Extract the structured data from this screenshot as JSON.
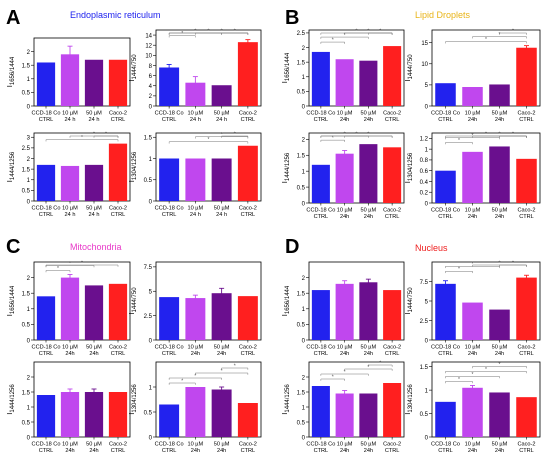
{
  "figure": {
    "panels": [
      {
        "letter": "A",
        "title": "Endoplasmic reticulum",
        "title_color": "#1e22ee"
      },
      {
        "letter": "B",
        "title": "Lipid Droplets",
        "title_color": "#e8b417"
      },
      {
        "letter": "C",
        "title": "Mitochondria",
        "title_color": "#e838c8"
      },
      {
        "letter": "D",
        "title": "Nucleus",
        "title_color": "#ee1e1e"
      }
    ],
    "bar_colors": [
      "#2222ee",
      "#c047ee",
      "#6a0f8e",
      "#ff1f1f"
    ],
    "significance_marker": "*"
  },
  "chart_data": [
    {
      "panel": "A",
      "type": "bar",
      "ylabel_main": "I",
      "ylabel_sub": "1656/1444",
      "ylim": [
        0,
        2.5
      ],
      "yticks": [
        0,
        0.5,
        1.0,
        1.5,
        2.0
      ],
      "categories": [
        [
          "CCD-18 Co",
          "CTRL"
        ],
        [
          "10 µM",
          "24 h"
        ],
        [
          "50 µM",
          "24 h"
        ],
        [
          "Caco-2",
          "CTRL"
        ]
      ],
      "values": [
        1.6,
        1.9,
        1.7,
        1.7
      ],
      "errors": [
        0,
        0.3,
        0,
        0
      ],
      "significance": []
    },
    {
      "panel": "A",
      "type": "bar",
      "ylabel_main": "I",
      "ylabel_sub": "1444/750",
      "ylim": [
        0,
        15
      ],
      "yticks": [
        0,
        2,
        4,
        6,
        8,
        10,
        12,
        14
      ],
      "categories": [
        [
          "CCD-18 Co",
          "CTRL"
        ],
        [
          "10 µM",
          "24 h"
        ],
        [
          "50 µM",
          "24 h"
        ],
        [
          "Caco-2",
          "CTRL"
        ]
      ],
      "values": [
        7.6,
        4.6,
        4.1,
        12.6
      ],
      "errors": [
        0.6,
        1.2,
        0,
        0.5
      ],
      "significance": [
        [
          0,
          1
        ],
        [
          0,
          2
        ],
        [
          0,
          3
        ],
        [
          1,
          3
        ],
        [
          2,
          3
        ]
      ]
    },
    {
      "panel": "A",
      "type": "bar",
      "ylabel_main": "I",
      "ylabel_sub": "1444/1256",
      "ylim": [
        0,
        3.2
      ],
      "yticks": [
        0,
        0.5,
        1.0,
        1.5,
        2.0,
        2.5,
        3.0
      ],
      "categories": [
        [
          "CCD-18 Co",
          "CTRL"
        ],
        [
          "10 µM",
          "24 h"
        ],
        [
          "50 µM",
          "24 h"
        ],
        [
          "Caco-2",
          "CTRL"
        ]
      ],
      "values": [
        1.7,
        1.65,
        1.7,
        2.7
      ],
      "errors": [
        0,
        0,
        0,
        0
      ],
      "significance": [
        [
          0,
          3
        ],
        [
          1,
          3
        ],
        [
          2,
          3
        ]
      ]
    },
    {
      "panel": "A",
      "type": "bar",
      "ylabel_main": "I",
      "ylabel_sub": "1304/1256",
      "ylim": [
        0,
        1.6
      ],
      "yticks": [
        0,
        0.5,
        1.0,
        1.5
      ],
      "categories": [
        [
          "CCD-18 Co",
          "CTRL"
        ],
        [
          "10 µM",
          "24 h"
        ],
        [
          "50 µM",
          "24 h"
        ],
        [
          "Caco-2",
          "CTRL"
        ]
      ],
      "values": [
        1.0,
        1.0,
        1.0,
        1.3
      ],
      "errors": [
        0,
        0,
        0,
        0
      ],
      "significance": [
        [
          0,
          3
        ],
        [
          1,
          3
        ],
        [
          2,
          3
        ]
      ]
    },
    {
      "panel": "B",
      "type": "bar",
      "ylabel_main": "I",
      "ylabel_sub": "1656/1444",
      "ylim": [
        0,
        2.6
      ],
      "yticks": [
        0,
        0.5,
        1.0,
        1.5,
        2.0,
        2.5
      ],
      "categories": [
        [
          "CCD-18 Co",
          "CTRL"
        ],
        [
          "10 µM",
          "24h"
        ],
        [
          "50 µM",
          "24h"
        ],
        [
          "Caco-2",
          "CTRL"
        ]
      ],
      "values": [
        1.85,
        1.6,
        1.55,
        2.05
      ],
      "errors": [
        0,
        0,
        0,
        0
      ],
      "significance": [
        [
          0,
          1
        ],
        [
          0,
          2
        ],
        [
          0,
          3
        ],
        [
          1,
          3
        ],
        [
          2,
          3
        ]
      ]
    },
    {
      "panel": "B",
      "type": "bar",
      "ylabel_main": "I",
      "ylabel_sub": "1444/750",
      "ylim": [
        0,
        18
      ],
      "yticks": [
        0,
        5,
        10,
        15
      ],
      "categories": [
        [
          "CCD-18 Co",
          "CTRL"
        ],
        [
          "10 µM",
          "24h"
        ],
        [
          "50 µM",
          "24h"
        ],
        [
          "Caco-2",
          "CTRL"
        ]
      ],
      "values": [
        5.4,
        4.5,
        5.1,
        13.8
      ],
      "errors": [
        0,
        0,
        0,
        0.5
      ],
      "significance": [
        [
          0,
          3
        ],
        [
          1,
          3
        ],
        [
          2,
          3
        ]
      ]
    },
    {
      "panel": "B",
      "type": "bar",
      "ylabel_main": "I",
      "ylabel_sub": "1444/1256",
      "ylim": [
        0,
        2.2
      ],
      "yticks": [
        0,
        0.5,
        1.0,
        1.5,
        2.0
      ],
      "categories": [
        [
          "CCD-18 Co",
          "CTRL"
        ],
        [
          "10 µM",
          "24h"
        ],
        [
          "50 µM",
          "24h"
        ],
        [
          "Caco-2",
          "CTRL"
        ]
      ],
      "values": [
        1.2,
        1.55,
        1.85,
        1.75
      ],
      "errors": [
        0,
        0.1,
        0,
        0
      ],
      "significance": [
        [
          0,
          1
        ],
        [
          0,
          2
        ],
        [
          0,
          3
        ],
        [
          1,
          3
        ]
      ]
    },
    {
      "panel": "B",
      "type": "bar",
      "ylabel_main": "I",
      "ylabel_sub": "1304/1256",
      "ylim": [
        0,
        1.3
      ],
      "yticks": [
        0,
        0.2,
        0.4,
        0.6,
        0.8,
        1.0,
        1.2
      ],
      "categories": [
        [
          "CCD-18 Co",
          "CTRL"
        ],
        [
          "10 µM",
          "24h"
        ],
        [
          "50 µM",
          "24h"
        ],
        [
          "Caco-2",
          "CTRL"
        ]
      ],
      "values": [
        0.6,
        0.95,
        1.05,
        0.82
      ],
      "errors": [
        0,
        0,
        0,
        0
      ],
      "significance": [
        [
          0,
          1
        ],
        [
          0,
          2
        ],
        [
          0,
          3
        ],
        [
          1,
          3
        ],
        [
          2,
          3
        ]
      ]
    },
    {
      "panel": "C",
      "type": "bar",
      "ylabel_main": "I",
      "ylabel_sub": "1656/1444",
      "ylim": [
        0,
        2.5
      ],
      "yticks": [
        0,
        0.5,
        1.0,
        1.5,
        2.0
      ],
      "categories": [
        [
          "CCD-18 Co",
          "CTRL"
        ],
        [
          "10 µM",
          "24h"
        ],
        [
          "50 µM",
          "24h"
        ],
        [
          "Caco-2",
          "CTRL"
        ]
      ],
      "values": [
        1.4,
        2.0,
        1.75,
        1.8
      ],
      "errors": [
        0,
        0.1,
        0,
        0
      ],
      "significance": [
        [
          0,
          1
        ],
        [
          0,
          2
        ],
        [
          0,
          3
        ]
      ]
    },
    {
      "panel": "C",
      "type": "bar",
      "ylabel_main": "I",
      "ylabel_sub": "1444/750",
      "ylim": [
        0,
        8
      ],
      "yticks": [
        0,
        2.5,
        5.0,
        7.5
      ],
      "categories": [
        [
          "CCD-18 Co",
          "CTRL"
        ],
        [
          "10 µM",
          "24h"
        ],
        [
          "50 µM",
          "24h"
        ],
        [
          "Caco-2",
          "CTRL"
        ]
      ],
      "values": [
        4.4,
        4.3,
        4.8,
        4.5
      ],
      "errors": [
        0,
        0.3,
        0.5,
        0
      ],
      "significance": []
    },
    {
      "panel": "C",
      "type": "bar",
      "ylabel_main": "I",
      "ylabel_sub": "1444/1256",
      "ylim": [
        0,
        2.5
      ],
      "yticks": [
        0,
        0.5,
        1.0,
        1.5,
        2.0
      ],
      "categories": [
        [
          "CCD-18 Co",
          "CTRL"
        ],
        [
          "10 µM",
          "24h"
        ],
        [
          "50 µM",
          "24h"
        ],
        [
          "Caco-2",
          "CTRL"
        ]
      ],
      "values": [
        1.4,
        1.5,
        1.5,
        1.5
      ],
      "errors": [
        0,
        0.1,
        0.1,
        0
      ],
      "significance": []
    },
    {
      "panel": "C",
      "type": "bar",
      "ylabel_main": "I",
      "ylabel_sub": "1304/1256",
      "ylim": [
        0,
        1.5
      ],
      "yticks": [
        0,
        0.5,
        1.0
      ],
      "categories": [
        [
          "CCD-18 Co",
          "CTRL"
        ],
        [
          "10 µM",
          "24h"
        ],
        [
          "50 µM",
          "24h"
        ],
        [
          "Caco-2",
          "CTRL"
        ]
      ],
      "values": [
        0.65,
        1.0,
        0.95,
        0.68
      ],
      "errors": [
        0,
        0,
        0.05,
        0
      ],
      "significance": [
        [
          0,
          1
        ],
        [
          0,
          2
        ],
        [
          1,
          3
        ],
        [
          2,
          3
        ]
      ]
    },
    {
      "panel": "D",
      "type": "bar",
      "ylabel_main": "I",
      "ylabel_sub": "1656/1444",
      "ylim": [
        0,
        2.5
      ],
      "yticks": [
        0,
        0.5,
        1.0,
        1.5,
        2.0
      ],
      "categories": [
        [
          "CCD-18 Co",
          "CTRL"
        ],
        [
          "10 µM",
          "24h"
        ],
        [
          "50 µM",
          "24h"
        ],
        [
          "Caco-2",
          "CTRL"
        ]
      ],
      "values": [
        1.6,
        1.8,
        1.85,
        1.6
      ],
      "errors": [
        0,
        0.1,
        0.1,
        0
      ],
      "significance": []
    },
    {
      "panel": "D",
      "type": "bar",
      "ylabel_main": "I",
      "ylabel_sub": "1444/750",
      "ylim": [
        0,
        10
      ],
      "yticks": [
        0,
        2.5,
        5.0,
        7.5
      ],
      "categories": [
        [
          "CCD-18 Co",
          "CTRL"
        ],
        [
          "10 µM",
          "24h"
        ],
        [
          "50 µM",
          "24h"
        ],
        [
          "Caco-2",
          "CTRL"
        ]
      ],
      "values": [
        7.2,
        4.8,
        3.9,
        8.0
      ],
      "errors": [
        0.4,
        0,
        0,
        0.3
      ],
      "significance": [
        [
          0,
          1
        ],
        [
          0,
          2
        ],
        [
          1,
          3
        ],
        [
          2,
          3
        ]
      ]
    },
    {
      "panel": "D",
      "type": "bar",
      "ylabel_main": "I",
      "ylabel_sub": "1444/1256",
      "ylim": [
        0,
        2.5
      ],
      "yticks": [
        0,
        0.5,
        1.0,
        1.5,
        2.0
      ],
      "categories": [
        [
          "CCD-18 Co",
          "CTRL"
        ],
        [
          "10 µM",
          "24h"
        ],
        [
          "50 µM",
          "24h"
        ],
        [
          "Caco-2",
          "CTRL"
        ]
      ],
      "values": [
        1.7,
        1.45,
        1.45,
        1.8
      ],
      "errors": [
        0,
        0.1,
        0,
        0
      ],
      "significance": [
        [
          0,
          1
        ],
        [
          0,
          2
        ],
        [
          1,
          3
        ],
        [
          2,
          3
        ]
      ]
    },
    {
      "panel": "D",
      "type": "bar",
      "ylabel_main": "I",
      "ylabel_sub": "1304/1256",
      "ylim": [
        0,
        1.6
      ],
      "yticks": [
        0,
        0.5,
        1.0,
        1.5
      ],
      "categories": [
        [
          "CCD-18 Co",
          "CTRL"
        ],
        [
          "10 µM",
          "24h"
        ],
        [
          "50 µM",
          "24h"
        ],
        [
          "Caco-2",
          "CTRL"
        ]
      ],
      "values": [
        0.75,
        1.05,
        0.95,
        0.85
      ],
      "errors": [
        0,
        0.05,
        0,
        0
      ],
      "significance": [
        [
          0,
          1
        ],
        [
          0,
          2
        ],
        [
          0,
          3
        ],
        [
          1,
          3
        ]
      ]
    }
  ]
}
